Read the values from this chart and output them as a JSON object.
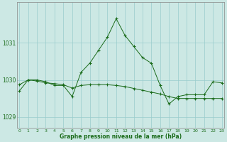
{
  "line1_x": [
    0,
    1,
    2,
    3,
    4,
    5,
    6,
    7,
    8,
    9,
    10,
    11,
    12,
    13,
    14,
    15,
    16,
    17,
    18,
    19,
    20,
    21,
    22,
    23
  ],
  "line1_y": [
    1029.7,
    1030.0,
    1030.0,
    1029.95,
    1029.85,
    1029.85,
    1029.55,
    1030.2,
    1030.45,
    1030.8,
    1031.15,
    1031.65,
    1031.2,
    1030.9,
    1030.6,
    1030.45,
    1029.85,
    1029.35,
    1029.55,
    1029.6,
    1029.6,
    1029.6,
    1029.95,
    1029.92
  ],
  "line2_x": [
    0,
    1,
    2,
    3,
    4,
    5,
    6,
    7,
    8,
    9,
    10,
    11,
    12,
    13,
    14,
    15,
    16,
    17,
    18,
    19,
    20,
    21,
    22,
    23
  ],
  "line2_y": [
    1029.87,
    1030.0,
    1029.97,
    1029.92,
    1029.9,
    1029.87,
    1029.78,
    1029.85,
    1029.87,
    1029.87,
    1029.87,
    1029.85,
    1029.82,
    1029.77,
    1029.72,
    1029.67,
    1029.62,
    1029.55,
    1029.5,
    1029.5,
    1029.5,
    1029.5,
    1029.5,
    1029.5
  ],
  "line_color": "#1a6b1a",
  "bg_color": "#cce8e4",
  "grid_color": "#99cccc",
  "xlabel": "Graphe pression niveau de la mer (hPa)",
  "xticks": [
    0,
    1,
    2,
    3,
    4,
    5,
    6,
    7,
    8,
    9,
    10,
    11,
    12,
    13,
    14,
    15,
    16,
    17,
    18,
    19,
    20,
    21,
    22,
    23
  ],
  "yticks": [
    1029,
    1030,
    1031
  ],
  "ylim": [
    1028.7,
    1032.1
  ],
  "xlim": [
    -0.3,
    23.3
  ]
}
